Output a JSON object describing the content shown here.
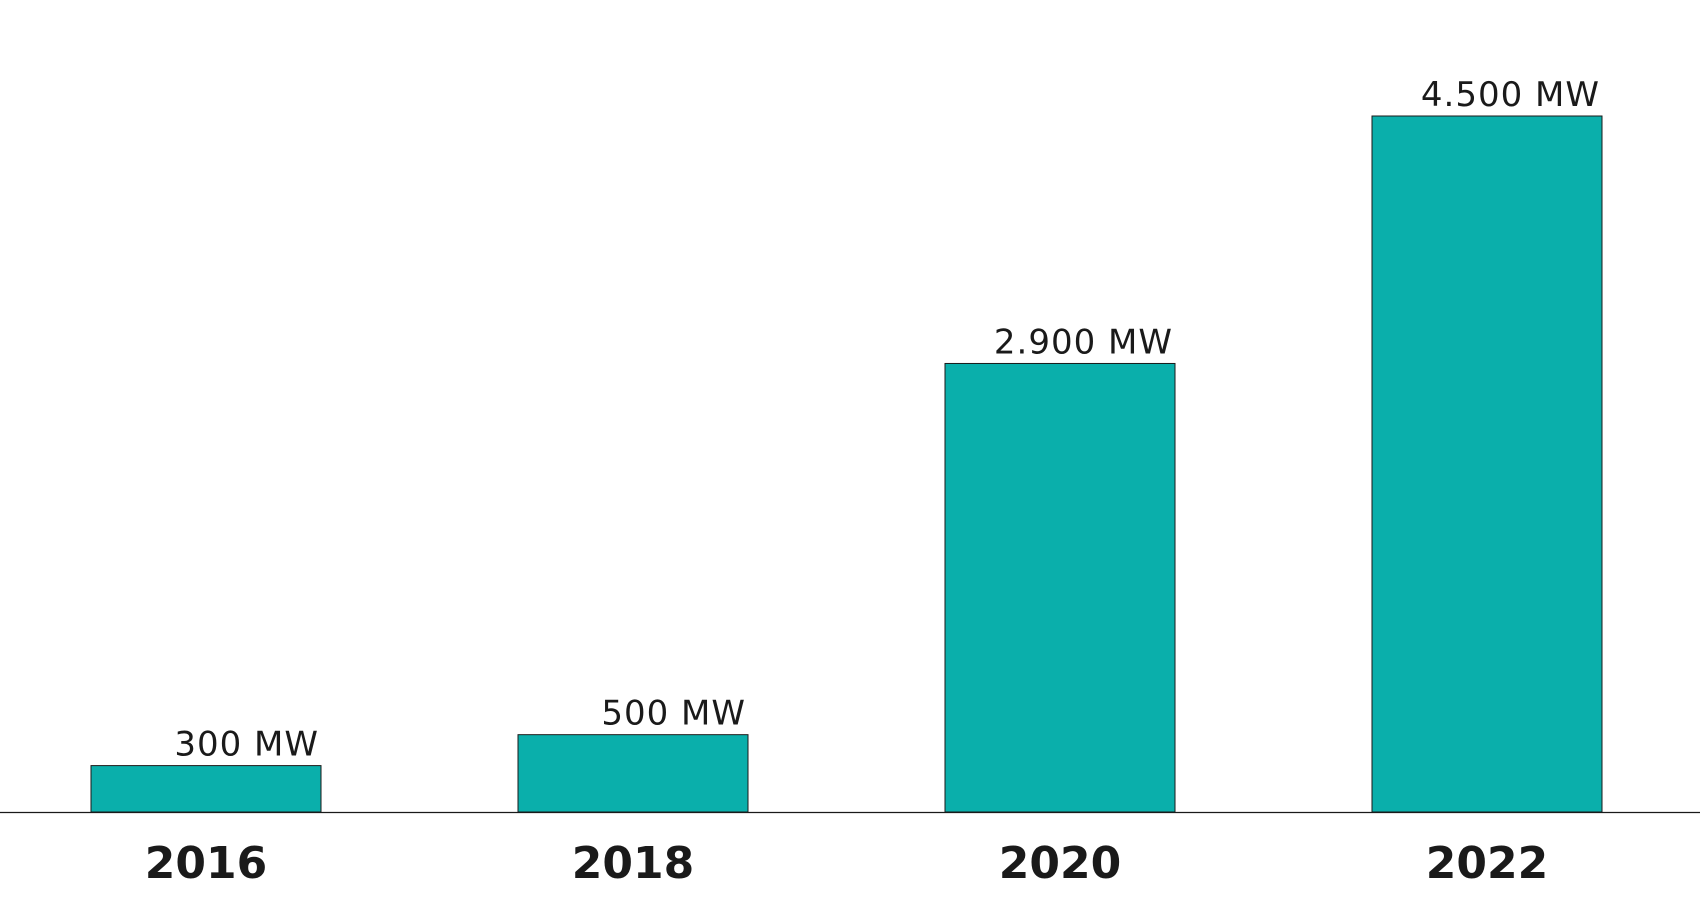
{
  "chart_data": {
    "type": "bar",
    "categories": [
      "2016",
      "2018",
      "2020",
      "2022"
    ],
    "values": [
      300,
      500,
      2900,
      4500
    ],
    "data_labels": [
      "300 MW",
      "500 MW",
      "2.900 MW",
      "4.500 MW"
    ],
    "title": "",
    "xlabel": "",
    "ylabel": "",
    "ylim": [
      0,
      4500
    ],
    "grid": false,
    "legend": "none",
    "bar_color": "#0AAFAB"
  }
}
